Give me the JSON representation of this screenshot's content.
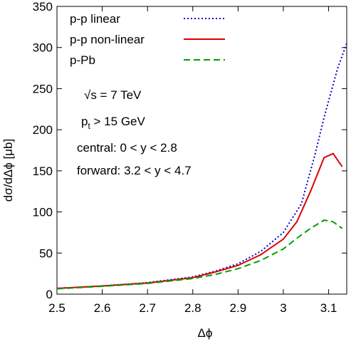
{
  "chart_data": {
    "type": "line",
    "title": "",
    "xlabel": "Δϕ",
    "ylabel": "dσ/dΔϕ [μb]",
    "xlim": [
      2.5,
      3.14
    ],
    "ylim": [
      0,
      350
    ],
    "xticks": [
      "2.5",
      "2.6",
      "2.7",
      "2.8",
      "2.9",
      "3",
      "3.1"
    ],
    "xtick_values": [
      2.5,
      2.6,
      2.7,
      2.8,
      2.9,
      3.0,
      3.1
    ],
    "yticks": [
      "0",
      "50",
      "100",
      "150",
      "200",
      "250",
      "300",
      "350"
    ],
    "ytick_values": [
      0,
      50,
      100,
      150,
      200,
      250,
      300,
      350
    ],
    "grid": false,
    "legend_position": "top-left",
    "series": [
      {
        "name": "p-p linear",
        "color": "#0000cc",
        "style": "dotted",
        "x": [
          2.5,
          2.6,
          2.7,
          2.8,
          2.85,
          2.9,
          2.95,
          3.0,
          3.04,
          3.07,
          3.09,
          3.12,
          3.14
        ],
        "y": [
          7,
          10,
          14,
          21,
          28,
          37,
          52,
          75,
          110,
          170,
          215,
          275,
          305
        ]
      },
      {
        "name": "p-p non-linear",
        "color": "#dd0000",
        "style": "solid",
        "x": [
          2.5,
          2.6,
          2.7,
          2.8,
          2.85,
          2.9,
          2.95,
          3.0,
          3.03,
          3.06,
          3.09,
          3.11,
          3.13
        ],
        "y": [
          7,
          10,
          13.5,
          20,
          27,
          35,
          48,
          67,
          88,
          125,
          166,
          171,
          155
        ]
      },
      {
        "name": "p-Pb",
        "color": "#00a000",
        "style": "dashed",
        "x": [
          2.5,
          2.6,
          2.7,
          2.8,
          2.85,
          2.9,
          2.95,
          3.0,
          3.03,
          3.06,
          3.09,
          3.11,
          3.13
        ],
        "y": [
          6.5,
          9.5,
          13,
          19,
          24,
          31,
          41,
          55,
          68,
          80,
          90,
          88,
          80
        ]
      }
    ],
    "annotations": [
      "√s = 7 TeV",
      "p",
      "t",
      " > 15 GeV",
      "central: 0 < y < 2.8",
      "forward: 3.2 < y < 4.7"
    ]
  }
}
